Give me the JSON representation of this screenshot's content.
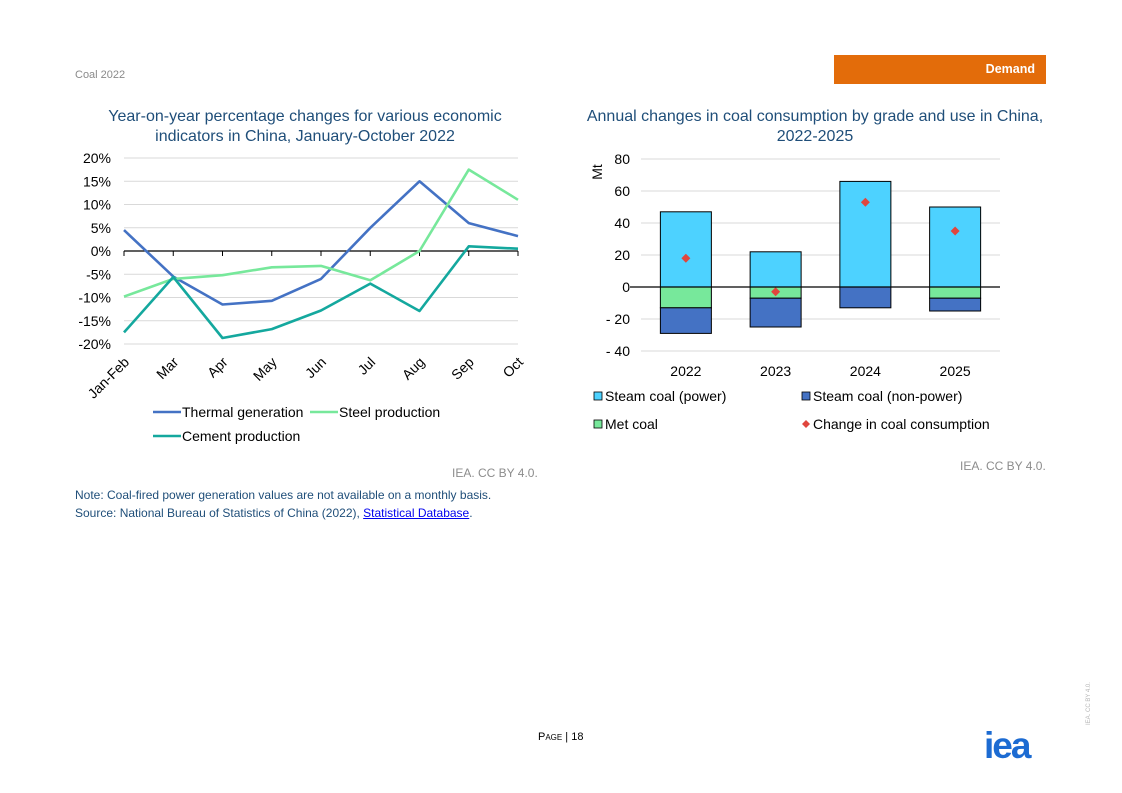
{
  "header": {
    "report": "Coal 2022",
    "section": "Demand"
  },
  "chart_data": [
    {
      "type": "line",
      "title": "Year-on-year percentage changes for various economic indicators in China, January-October 2022",
      "categories": [
        "Jan-Feb",
        "Mar",
        "Apr",
        "May",
        "Jun",
        "Jul",
        "Aug",
        "Sep",
        "Oct"
      ],
      "ylim": [
        -20,
        20
      ],
      "yticks": [
        "20%",
        "15%",
        "10%",
        "5%",
        "0%",
        "-5%",
        "-10%",
        "-15%",
        "-20%"
      ],
      "series": [
        {
          "name": "Thermal generation",
          "color": "#4472c4",
          "values": [
            4.5,
            -5.5,
            -11.5,
            -10.7,
            -6,
            5,
            15,
            6,
            3.2
          ]
        },
        {
          "name": "Steel production",
          "color": "#77e89b",
          "values": [
            -9.8,
            -6,
            -5.2,
            -3.5,
            -3.2,
            -6.3,
            0,
            17.5,
            11
          ]
        },
        {
          "name": "Cement production",
          "color": "#14a89e",
          "values": [
            -17.5,
            -5.6,
            -18.7,
            -16.8,
            -12.8,
            -7,
            -12.9,
            1,
            0.5
          ]
        }
      ],
      "credit": "IEA. CC BY 4.0."
    },
    {
      "type": "bar",
      "title": "Annual changes in coal consumption by grade and use in China, 2022-2025",
      "categories": [
        "2022",
        "2023",
        "2024",
        "2025"
      ],
      "ylabel": "Mt",
      "ylim": [
        -40,
        80
      ],
      "yticks": [
        "80",
        "60",
        "40",
        "20",
        "0",
        "- 20",
        "- 40"
      ],
      "series": [
        {
          "name": "Steam coal (power)",
          "color": "#4dd2ff",
          "values": [
            47,
            22,
            66,
            50
          ]
        },
        {
          "name": "Steam coal (non-power)",
          "color": "#4472c4",
          "values": [
            -16,
            -18,
            -13,
            -8
          ]
        },
        {
          "name": "Met coal",
          "color": "#77e89b",
          "values": [
            -13,
            -7,
            0,
            -7
          ]
        },
        {
          "name": "Change in coal consumption",
          "color": "#e0463d",
          "marker": "diamond",
          "values": [
            18,
            -3,
            53,
            35
          ]
        }
      ],
      "credit": "IEA. CC BY 4.0."
    }
  ],
  "notes": {
    "note": "Note: Coal-fired power generation values are not available on a monthly basis.",
    "source_prefix": "Source: National Bureau of Statistics of China (2022), ",
    "source_link": "Statistical Database",
    "source_suffix": "."
  },
  "footer": {
    "page_label": "Page",
    "page_number": "| 18",
    "logo": "iea",
    "vertical_credit": "IEA. CC BY 4.0."
  }
}
